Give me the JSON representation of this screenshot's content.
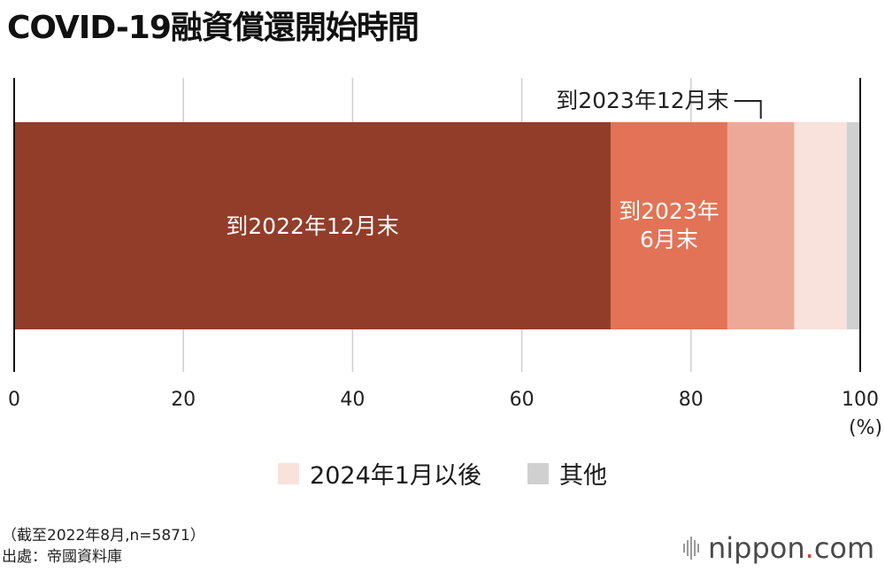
{
  "title": "COVID-19融資償還開始時間",
  "chart_data": {
    "type": "bar",
    "orientation": "horizontal-stacked",
    "xlim": [
      0,
      100
    ],
    "x_ticks": [
      "0",
      "20",
      "40",
      "60",
      "80",
      "100"
    ],
    "unit_label": "(%)",
    "grid": true,
    "series": [
      {
        "name": "到2022年12月末",
        "value": 70.5,
        "color": "#923d29"
      },
      {
        "name": "到2023年6月末",
        "value": 13.8,
        "color": "#e27357"
      },
      {
        "name": "到2023年12月末",
        "value": 7.9,
        "color": "#eda898"
      },
      {
        "name": "2024年1月以後",
        "value": 6.2,
        "color": "#f9e1dc"
      },
      {
        "name": "其他",
        "value": 1.6,
        "color": "#d0d0d0"
      }
    ],
    "segment_labels": {
      "seg0": [
        "到2022年12月末"
      ],
      "seg1": [
        "到2023年",
        "6月末"
      ],
      "callout": "到2023年12月末"
    }
  },
  "legend": {
    "items": [
      {
        "label": "2024年1月以後",
        "color": "#f9e1dc"
      },
      {
        "label": "其他",
        "color": "#d0d0d0"
      }
    ]
  },
  "note": {
    "line1": "（截至2022年8月,n=5871）",
    "line2": "出處：帝國資料庫"
  },
  "brand": {
    "name": "nippon",
    "dot": ".",
    "suffix": "com",
    "icon": "nippon-bars-icon"
  }
}
